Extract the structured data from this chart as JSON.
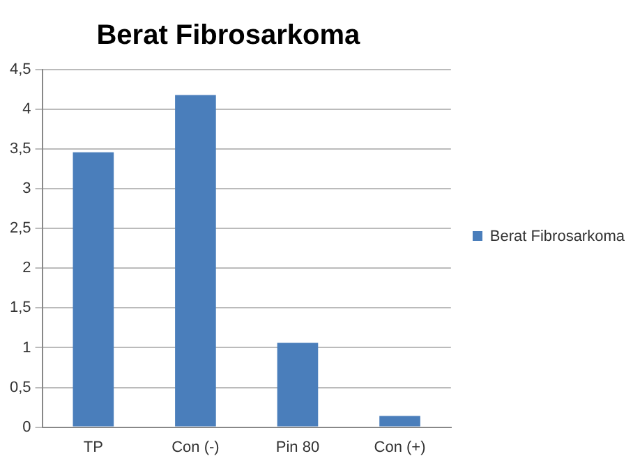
{
  "chart_data": {
    "type": "bar",
    "title": "Berat Fibrosarkoma",
    "categories": [
      "TP",
      "Con (-)",
      "Pin 80",
      "Con (+)"
    ],
    "series": [
      {
        "name": "Berat Fibrosarkoma",
        "color": "#4a7ebb",
        "values": [
          3.46,
          4.18,
          1.06,
          0.14
        ]
      }
    ],
    "ylim": [
      0,
      4.5
    ],
    "yticks": [
      0,
      {
        "value": 0.5,
        "label": "0,5"
      },
      1,
      {
        "value": 1.5,
        "label": "1,5"
      },
      2,
      {
        "value": 2.5,
        "label": "2,5"
      },
      3,
      {
        "value": 3.5,
        "label": "3,5"
      },
      4,
      {
        "value": 4.5,
        "label": "4,5"
      }
    ],
    "grid": "y",
    "legend": "right"
  }
}
